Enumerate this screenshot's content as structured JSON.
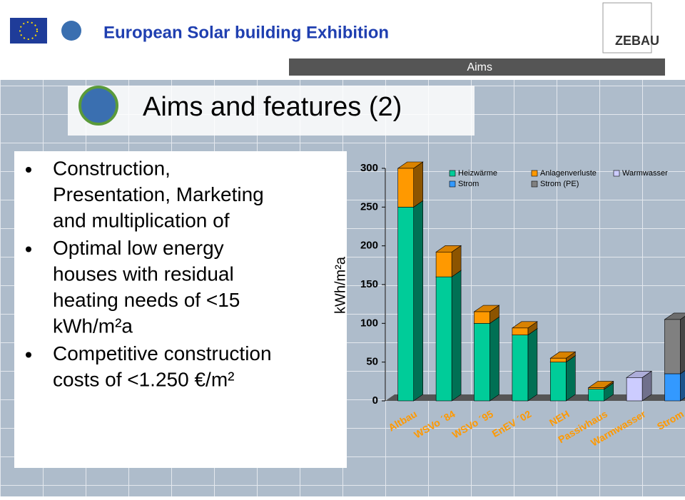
{
  "header": {
    "title": "European Solar building Exhibition",
    "logo_text": "ZEBAU",
    "section": "Aims"
  },
  "slide_title": "Aims and features (2)",
  "bullets": [
    [
      "Construction,",
      "Presentation, Marketing",
      "and multiplication of"
    ],
    [
      "Optimal low energy",
      "houses with residual",
      "heating needs of <15",
      "kWh/m²a"
    ],
    [
      "Competitive  construction",
      "costs of <1.250 €/m²"
    ]
  ],
  "chart_data": {
    "type": "bar3d-stacked",
    "y_label": "kWh/m²a",
    "categories": [
      "Altbau",
      "WSVo ´84",
      "WSVo ´95",
      "EnEV ´02",
      "NEH",
      "Passivhaus",
      "Warmwasser",
      "Strom"
    ],
    "series": [
      {
        "name": "Heizwärme",
        "color": "#00cc99",
        "values": [
          250,
          160,
          100,
          85,
          50,
          15,
          null,
          null
        ]
      },
      {
        "name": "Anlagenverluste",
        "color": "#ff9900",
        "values": [
          50,
          32,
          15,
          9,
          5,
          2,
          null,
          null
        ]
      },
      {
        "name": "Warmwasser",
        "color": "#ccccff",
        "values": [
          null,
          null,
          null,
          null,
          null,
          null,
          30,
          null
        ]
      },
      {
        "name": "Strom",
        "color": "#3399ff",
        "values": [
          null,
          null,
          null,
          null,
          null,
          null,
          null,
          35
        ]
      },
      {
        "name": "Strom (PE)",
        "color": "#808080",
        "values": [
          null,
          null,
          null,
          null,
          null,
          null,
          null,
          70
        ]
      }
    ],
    "ylim": [
      0,
      300
    ],
    "yticks": [
      0,
      50,
      100,
      150,
      200,
      250,
      300
    ],
    "legend": "top"
  }
}
